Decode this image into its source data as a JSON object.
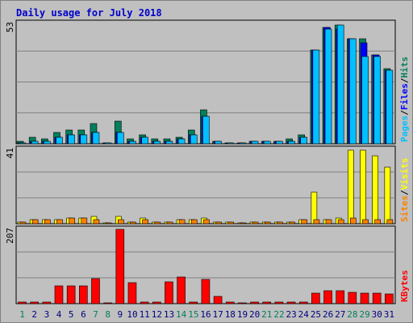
{
  "title": "Daily usage for July 2018",
  "colors": {
    "page_bg": "#c0c0c0",
    "plot_bg": "#c0c0c0",
    "title": "#0000cc",
    "hits": "#00805c",
    "files": "#0000ff",
    "pages": "#00c0ff",
    "visits": "#ffff00",
    "sites": "#ff8000",
    "kbytes": "#ff0000",
    "weekend_tick": "#00805c",
    "tick": "#000080"
  },
  "chart_data": [
    {
      "type": "bar",
      "panel": "top",
      "ymax_label": "53",
      "ymax": 53,
      "right_labels": [
        "Pages",
        "Files",
        "Hits"
      ],
      "categories": [
        "1",
        "2",
        "3",
        "4",
        "5",
        "6",
        "7",
        "8",
        "9",
        "10",
        "11",
        "12",
        "13",
        "14",
        "15",
        "16",
        "17",
        "18",
        "19",
        "20",
        "21",
        "22",
        "23",
        "24",
        "25",
        "26",
        "27",
        "28",
        "29",
        "30",
        "31"
      ],
      "series": [
        {
          "name": "Hits",
          "values": [
            1,
            3,
            2,
            5,
            6,
            6,
            9,
            0,
            10,
            2,
            4,
            2,
            2,
            3,
            6,
            15,
            1,
            0,
            0,
            1,
            1,
            1,
            2,
            4,
            41,
            51,
            52,
            46,
            46,
            39,
            33
          ]
        },
        {
          "name": "Files",
          "values": [
            0,
            1,
            1,
            3,
            4,
            4,
            5,
            0,
            5,
            1,
            3,
            1,
            1,
            2,
            4,
            12,
            1,
            0,
            0,
            1,
            1,
            1,
            1,
            3,
            41,
            51,
            50,
            46,
            44,
            39,
            32
          ]
        },
        {
          "name": "Pages",
          "values": [
            0,
            1,
            1,
            3,
            4,
            4,
            5,
            0,
            5,
            1,
            3,
            1,
            1,
            2,
            4,
            12,
            1,
            0,
            0,
            1,
            1,
            1,
            1,
            3,
            41,
            50,
            52,
            46,
            38,
            38,
            32
          ]
        }
      ]
    },
    {
      "type": "bar",
      "panel": "middle",
      "ymax_label": "41",
      "ymax": 41,
      "right_labels": [
        "Sites",
        "Visits"
      ],
      "categories": [
        "1",
        "2",
        "3",
        "4",
        "5",
        "6",
        "7",
        "8",
        "9",
        "10",
        "11",
        "12",
        "13",
        "14",
        "15",
        "16",
        "17",
        "18",
        "19",
        "20",
        "21",
        "22",
        "23",
        "24",
        "25",
        "26",
        "27",
        "28",
        "29",
        "30",
        "31"
      ],
      "series": [
        {
          "name": "Visits",
          "values": [
            1,
            2,
            2,
            2,
            3,
            3,
            4,
            0,
            4,
            1,
            3,
            1,
            1,
            2,
            2,
            3,
            1,
            1,
            0,
            1,
            1,
            1,
            1,
            2,
            17,
            2,
            3,
            40,
            40,
            37,
            31
          ]
        },
        {
          "name": "Sites",
          "values": [
            1,
            2,
            2,
            2,
            3,
            3,
            2,
            0,
            2,
            1,
            2,
            1,
            1,
            2,
            2,
            2,
            1,
            1,
            0,
            1,
            1,
            1,
            1,
            2,
            2,
            2,
            2,
            3,
            2,
            2,
            2
          ]
        }
      ]
    },
    {
      "type": "bar",
      "panel": "bottom",
      "ymax_label": "207",
      "ymax": 207,
      "right_labels": [
        "KBytes"
      ],
      "categories": [
        "1",
        "2",
        "3",
        "4",
        "5",
        "6",
        "7",
        "8",
        "9",
        "10",
        "11",
        "12",
        "13",
        "14",
        "15",
        "16",
        "17",
        "18",
        "19",
        "20",
        "21",
        "22",
        "23",
        "24",
        "25",
        "26",
        "27",
        "28",
        "29",
        "30",
        "31"
      ],
      "series": [
        {
          "name": "KBytes",
          "values": [
            1,
            2,
            2,
            50,
            50,
            50,
            70,
            0,
            205,
            58,
            3,
            2,
            60,
            73,
            2,
            67,
            20,
            1,
            0,
            1,
            1,
            1,
            1,
            5,
            30,
            35,
            35,
            32,
            30,
            30,
            27
          ]
        }
      ]
    }
  ],
  "x_ticks": [
    {
      "label": "1",
      "weekend": true
    },
    {
      "label": "2",
      "weekend": false
    },
    {
      "label": "3",
      "weekend": false
    },
    {
      "label": "4",
      "weekend": false
    },
    {
      "label": "5",
      "weekend": false
    },
    {
      "label": "6",
      "weekend": false
    },
    {
      "label": "7",
      "weekend": true
    },
    {
      "label": "8",
      "weekend": true
    },
    {
      "label": "9",
      "weekend": false
    },
    {
      "label": "10",
      "weekend": false
    },
    {
      "label": "11",
      "weekend": false
    },
    {
      "label": "12",
      "weekend": false
    },
    {
      "label": "13",
      "weekend": false
    },
    {
      "label": "14",
      "weekend": true
    },
    {
      "label": "15",
      "weekend": true
    },
    {
      "label": "16",
      "weekend": false
    },
    {
      "label": "17",
      "weekend": false
    },
    {
      "label": "18",
      "weekend": false
    },
    {
      "label": "19",
      "weekend": false
    },
    {
      "label": "20",
      "weekend": false
    },
    {
      "label": "21",
      "weekend": true
    },
    {
      "label": "22",
      "weekend": true
    },
    {
      "label": "23",
      "weekend": false
    },
    {
      "label": "24",
      "weekend": false
    },
    {
      "label": "25",
      "weekend": false
    },
    {
      "label": "26",
      "weekend": false
    },
    {
      "label": "27",
      "weekend": false
    },
    {
      "label": "28",
      "weekend": true
    },
    {
      "label": "29",
      "weekend": true
    },
    {
      "label": "30",
      "weekend": false
    },
    {
      "label": "31",
      "weekend": false
    }
  ]
}
